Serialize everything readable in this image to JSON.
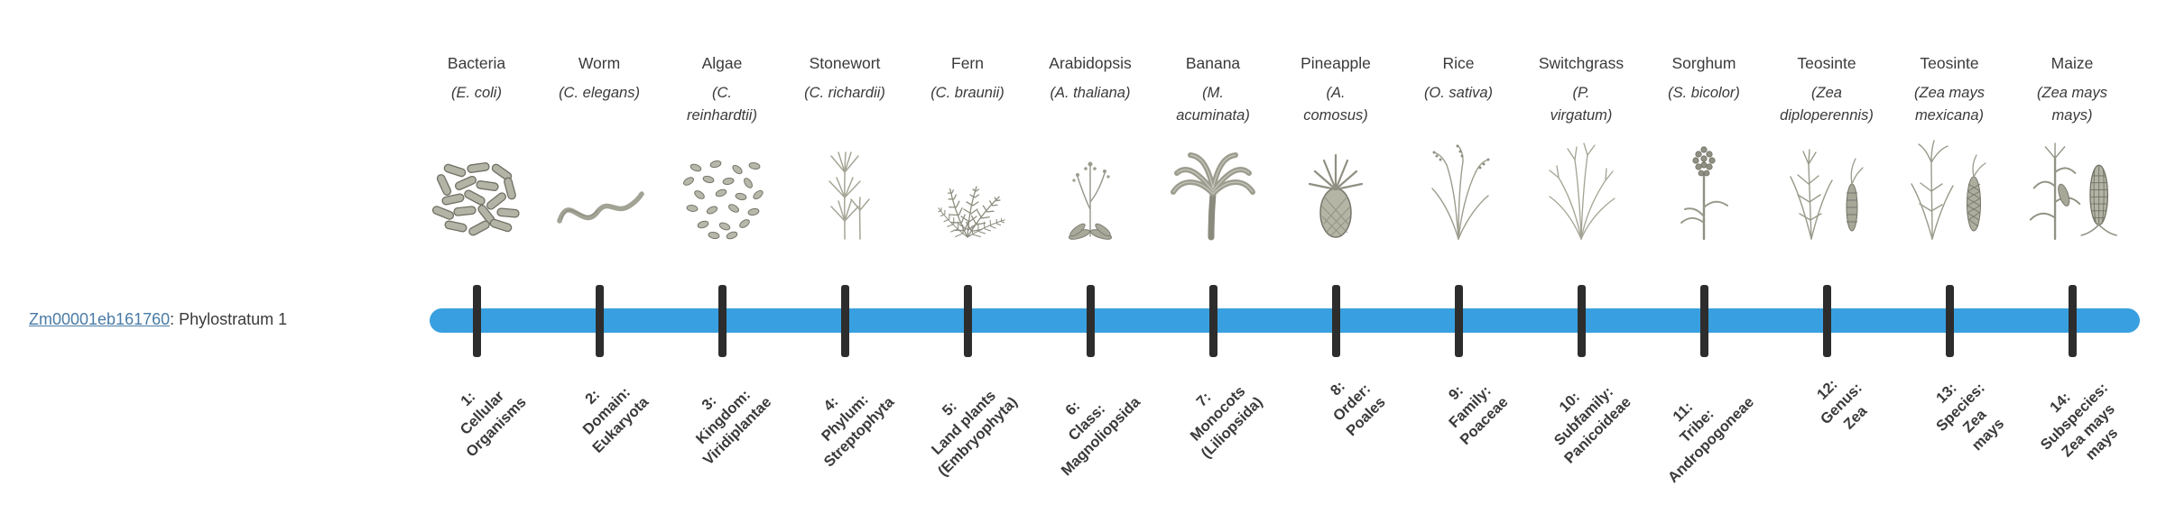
{
  "gene": {
    "id": "Zm00001eb161760",
    "suffix": ": Phylostratum 1"
  },
  "timeline": {
    "bar_color": "#38a0e0",
    "tick_color": "#2d2d2d",
    "tick_count": 14
  },
  "organisms": [
    {
      "common": "Bacteria",
      "sci": "(E. coli)",
      "icon": "bacteria-icon",
      "stratum": "1:\nCellular\nOrganisms"
    },
    {
      "common": "Worm",
      "sci": "(C. elegans)",
      "icon": "worm-icon",
      "stratum": "2:\nDomain:\nEukaryota"
    },
    {
      "common": "Algae",
      "sci": "(C.\nreinhardtii)",
      "icon": "algae-icon",
      "stratum": "3:\nKingdom:\nViridiplantae"
    },
    {
      "common": "Stonewort",
      "sci": "(C. richardii)",
      "icon": "stonewort-icon",
      "stratum": "4:\nPhylum:\nStreptophyta"
    },
    {
      "common": "Fern",
      "sci": "(C. braunii)",
      "icon": "fern-icon",
      "stratum": "5:\nLand plants\n(Embryophyta)"
    },
    {
      "common": "Arabidopsis",
      "sci": "(A. thaliana)",
      "icon": "arabidopsis-icon",
      "stratum": "6:\nClass:\nMagnoliopsida"
    },
    {
      "common": "Banana",
      "sci": "(M.\nacuminata)",
      "icon": "banana-icon",
      "stratum": "7:\nMonocots\n(Liliopsida)"
    },
    {
      "common": "Pineapple",
      "sci": "(A.\ncomosus)",
      "icon": "pineapple-icon",
      "stratum": "8:\nOrder:\nPoales"
    },
    {
      "common": "Rice",
      "sci": "(O. sativa)",
      "icon": "rice-icon",
      "stratum": "9:\nFamily:\nPoaceae"
    },
    {
      "common": "Switchgrass",
      "sci": "(P.\nvirgatum)",
      "icon": "switchgrass-icon",
      "stratum": "10:\nSubfamily:\nPanicoideae"
    },
    {
      "common": "Sorghum",
      "sci": "(S. bicolor)",
      "icon": "sorghum-icon",
      "stratum": "11:\nTribe:\nAndropogoneae"
    },
    {
      "common": "Teosinte",
      "sci": "(Zea\ndiploperennis)",
      "icon": "teosinte-diploperennis-icon",
      "stratum": "12:\nGenus:\nZea"
    },
    {
      "common": "Teosinte",
      "sci": "(Zea mays\nmexicana)",
      "icon": "teosinte-mexicana-icon",
      "stratum": "13:\nSpecies:\nZea\nmays"
    },
    {
      "common": "Maize",
      "sci": "(Zea mays\nmays)",
      "icon": "maize-icon",
      "stratum": "14:\nSubspecies:\nZea mays\nmays"
    }
  ]
}
